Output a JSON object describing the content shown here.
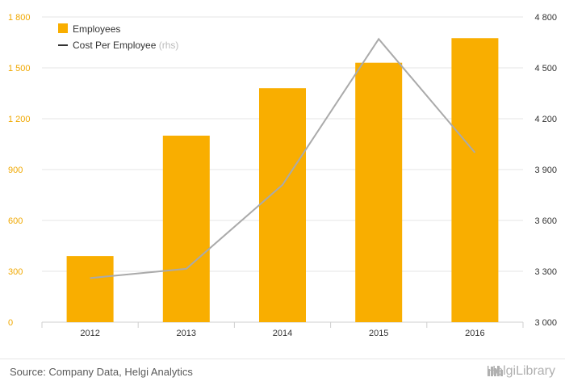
{
  "chart_data": {
    "type": "bar",
    "categories": [
      "2012",
      "2013",
      "2014",
      "2015",
      "2016"
    ],
    "series": [
      {
        "name": "Employees",
        "type": "bar",
        "axis": "left",
        "color": "#f9ae00",
        "values": [
          390,
          1100,
          1380,
          1530,
          1675
        ]
      },
      {
        "name": "Cost Per Employee",
        "name_suffix": "(rhs)",
        "type": "line",
        "axis": "right",
        "color": "#aaaaaa",
        "values": [
          3260,
          3315,
          3810,
          4670,
          4000
        ]
      }
    ],
    "y_left": {
      "ylim": [
        0,
        1800
      ],
      "ticks": [
        0,
        300,
        600,
        900,
        1200,
        1500,
        1800
      ],
      "tick_labels": [
        "0",
        "300",
        "600",
        "900",
        "1 200",
        "1 500",
        "1 800"
      ],
      "color": "#f0a800"
    },
    "y_right": {
      "ylim": [
        3000,
        4800
      ],
      "ticks": [
        3000,
        3300,
        3600,
        3900,
        4200,
        4500,
        4800
      ],
      "tick_labels": [
        "3 000",
        "3 300",
        "3 600",
        "3 900",
        "4 200",
        "4 500",
        "4 800"
      ],
      "color": "#333333"
    },
    "grid": true,
    "legend_position": "top-left"
  },
  "footer": {
    "source": "Source: Company Data, Helgi Analytics",
    "brand": "HelgiLibrary"
  }
}
